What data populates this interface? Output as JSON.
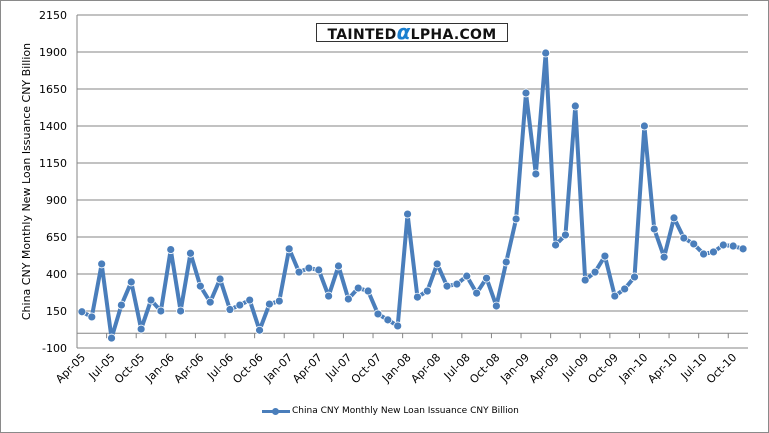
{
  "chart_data": {
    "type": "line",
    "title": "",
    "xlabel": "",
    "ylabel": "China CNY Monthly New Loan Issuance CNY Billion",
    "ylim": [
      -100,
      2150
    ],
    "yticks": [
      -100,
      150,
      400,
      650,
      900,
      1150,
      1400,
      1650,
      1900,
      2150
    ],
    "grid": true,
    "legend_position": "bottom",
    "watermark": "TaintedAlpha.com",
    "xtick_labels": [
      "Apr-05",
      "Jul-05",
      "Oct-05",
      "Jan-06",
      "Apr-06",
      "Jul-06",
      "Oct-06",
      "Jan-07",
      "Apr-07",
      "Jul-07",
      "Oct-07",
      "Jan-08",
      "Apr-08",
      "Jul-08",
      "Oct-08",
      "Jan-09",
      "Apr-09",
      "Jul-09",
      "Oct-09",
      "Jan-10",
      "Apr-10",
      "Jul-10",
      "Oct-10"
    ],
    "x": [
      "Apr-05",
      "May-05",
      "Jun-05",
      "Jul-05",
      "Aug-05",
      "Sep-05",
      "Oct-05",
      "Nov-05",
      "Dec-05",
      "Jan-06",
      "Feb-06",
      "Mar-06",
      "Apr-06",
      "May-06",
      "Jun-06",
      "Jul-06",
      "Aug-06",
      "Sep-06",
      "Oct-06",
      "Nov-06",
      "Dec-06",
      "Jan-07",
      "Feb-07",
      "Mar-07",
      "Apr-07",
      "May-07",
      "Jun-07",
      "Jul-07",
      "Aug-07",
      "Sep-07",
      "Oct-07",
      "Nov-07",
      "Dec-07",
      "Jan-08",
      "Feb-08",
      "Mar-08",
      "Apr-08",
      "May-08",
      "Jun-08",
      "Jul-08",
      "Aug-08",
      "Sep-08",
      "Oct-08",
      "Nov-08",
      "Dec-08",
      "Jan-09",
      "Feb-09",
      "Mar-09",
      "Apr-09",
      "May-09",
      "Jun-09",
      "Jul-09",
      "Aug-09",
      "Sep-09",
      "Oct-09",
      "Nov-09",
      "Dec-09",
      "Jan-10",
      "Feb-10",
      "Mar-10",
      "Apr-10",
      "May-10",
      "Jun-10",
      "Jul-10",
      "Aug-10",
      "Sep-10",
      "Oct-10",
      "Nov-10"
    ],
    "series": [
      {
        "name": "China CNY Monthly New Loan Issuance CNY Billion",
        "color": "#4a7ebb",
        "values": [
          145,
          110,
          468,
          -33,
          190,
          346,
          28,
          224,
          150,
          565,
          150,
          540,
          318,
          210,
          366,
          160,
          190,
          224,
          20,
          197,
          217,
          570,
          413,
          440,
          427,
          251,
          454,
          231,
          305,
          285,
          130,
          90,
          49,
          805,
          244,
          285,
          468,
          318,
          332,
          386,
          271,
          372,
          184,
          481,
          772,
          1623,
          1076,
          1893,
          596,
          664,
          1535,
          359,
          413,
          521,
          251,
          299,
          380,
          1400,
          704,
          514,
          779,
          643,
          603,
          535,
          549,
          596,
          589,
          570
        ]
      }
    ]
  }
}
